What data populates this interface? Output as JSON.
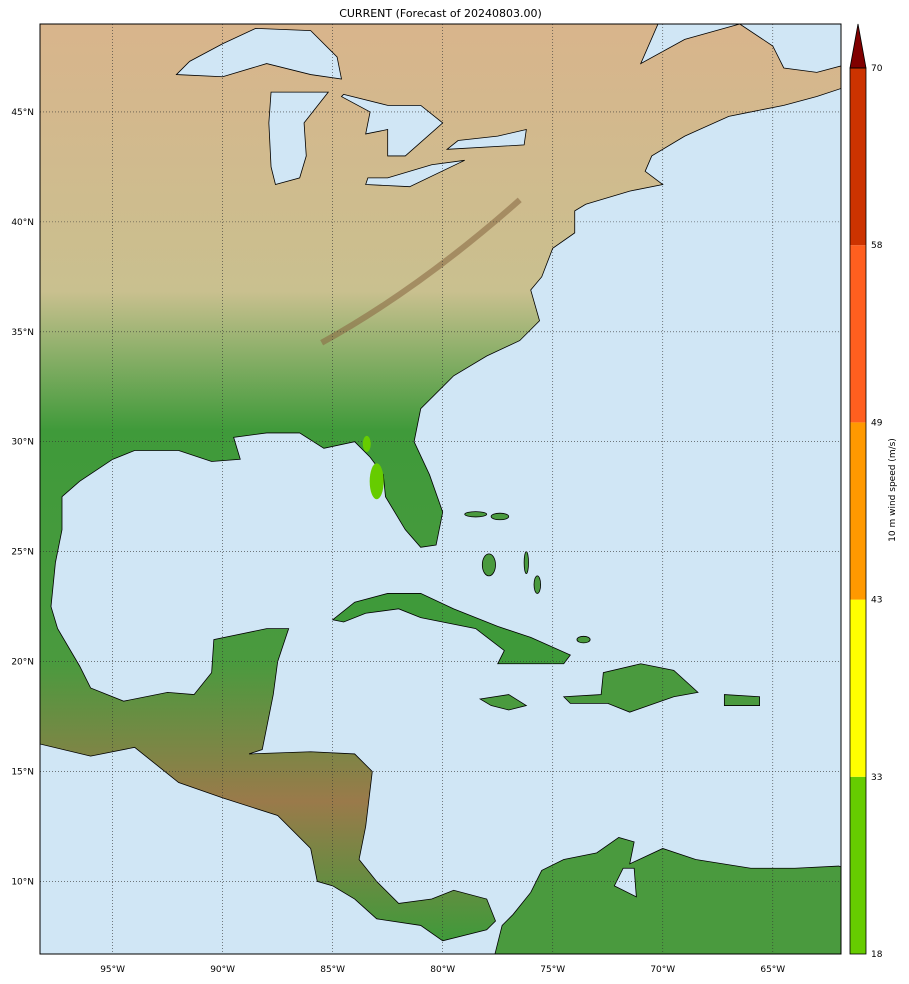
{
  "title": "CURRENT (Forecast of 20240803.00)",
  "map": {
    "extent_lon": [
      -98.3,
      -61.9
    ],
    "extent_lat": [
      6.7,
      49.0
    ],
    "water_color": "#d0e6f5",
    "land_colors": [
      "#d9b48c",
      "#c9c08f",
      "#3f9a3a",
      "#2f7d2f"
    ],
    "gridlines": "dotted",
    "lon_ticks": [
      {
        "value": -95,
        "label": "95°W"
      },
      {
        "value": -90,
        "label": "90°W"
      },
      {
        "value": -85,
        "label": "85°W"
      },
      {
        "value": -80,
        "label": "80°W"
      },
      {
        "value": -75,
        "label": "75°W"
      },
      {
        "value": -70,
        "label": "70°W"
      },
      {
        "value": -65,
        "label": "65°W"
      }
    ],
    "lat_ticks": [
      {
        "value": 45,
        "label": "45°N"
      },
      {
        "value": 40,
        "label": "40°N"
      },
      {
        "value": 35,
        "label": "35°N"
      },
      {
        "value": 30,
        "label": "30°N"
      },
      {
        "value": 25,
        "label": "25°N"
      },
      {
        "value": 20,
        "label": "20°N"
      },
      {
        "value": 15,
        "label": "15°N"
      },
      {
        "value": 10,
        "label": "10°N"
      }
    ],
    "wind_swath": {
      "lon": -83.0,
      "lat": 28.2,
      "level_color": "#66cc00"
    }
  },
  "colorbar": {
    "label": "10 m wind speed (m/s)",
    "extend_color": "#800000",
    "levels": [
      {
        "from": 18,
        "to": 33,
        "color": "#66cc00"
      },
      {
        "from": 33,
        "to": 43,
        "color": "#ffff00"
      },
      {
        "from": 43,
        "to": 49,
        "color": "#ff9900"
      },
      {
        "from": 49,
        "to": 58,
        "color": "#ff5f1f"
      },
      {
        "from": 58,
        "to": 70,
        "color": "#cc3300"
      }
    ],
    "ticks": [
      "18",
      "33",
      "43",
      "49",
      "58",
      "70"
    ]
  }
}
